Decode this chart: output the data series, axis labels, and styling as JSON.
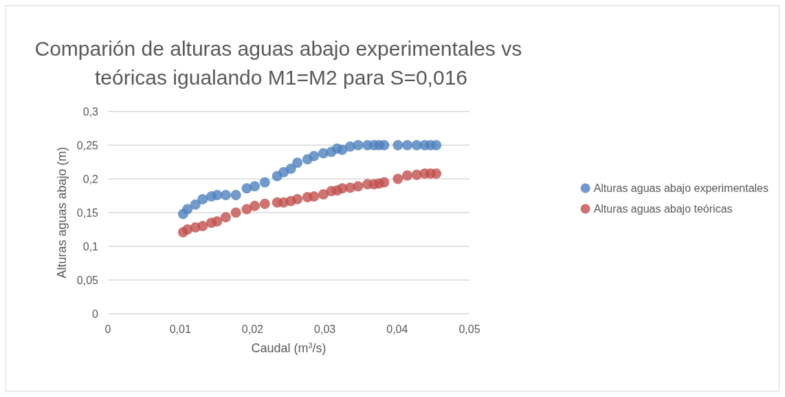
{
  "chart_data": {
    "type": "scatter",
    "title": "Comparión de alturas aguas abajo experimentales vs teóricas igualando M1=M2 para S=0,016",
    "xlabel": "Caudal (m$^{3}$/s)",
    "ylabel": "Alturas aguas abajo (m)",
    "x": [
      0.0104,
      0.011,
      0.0121,
      0.0131,
      0.0143,
      0.0151,
      0.0163,
      0.0177,
      0.0192,
      0.0203,
      0.0217,
      0.0234,
      0.0243,
      0.0253,
      0.0262,
      0.0276,
      0.0285,
      0.0298,
      0.0309,
      0.0317,
      0.0324,
      0.0335,
      0.0346,
      0.0359,
      0.0368,
      0.0375,
      0.0382,
      0.0401,
      0.0414,
      0.0427,
      0.0438,
      0.0446,
      0.0454
    ],
    "series": [
      {
        "name": "Alturas aguas abajo experimentales",
        "color": "#4f81bd",
        "values": [
          0.148,
          0.155,
          0.162,
          0.17,
          0.174,
          0.176,
          0.176,
          0.176,
          0.186,
          0.189,
          0.195,
          0.204,
          0.21,
          0.215,
          0.224,
          0.229,
          0.234,
          0.238,
          0.24,
          0.245,
          0.243,
          0.248,
          0.25,
          0.25,
          0.25,
          0.25,
          0.25,
          0.25,
          0.25,
          0.25,
          0.25,
          0.25,
          0.25
        ]
      },
      {
        "name": "Alturas aguas abajo teóricas",
        "color": "#c0504d",
        "values": [
          0.121,
          0.125,
          0.128,
          0.13,
          0.135,
          0.137,
          0.143,
          0.15,
          0.155,
          0.16,
          0.163,
          0.165,
          0.165,
          0.167,
          0.17,
          0.173,
          0.174,
          0.177,
          0.182,
          0.183,
          0.186,
          0.187,
          0.189,
          0.192,
          0.192,
          0.193,
          0.195,
          0.2,
          0.205,
          0.206,
          0.208,
          0.208,
          0.208
        ]
      }
    ],
    "xlim": [
      0,
      0.05
    ],
    "xticks": [
      {
        "value": 0,
        "label": "0"
      },
      {
        "value": 0.01,
        "label": "0,01"
      },
      {
        "value": 0.02,
        "label": "0,02"
      },
      {
        "value": 0.03,
        "label": "0,03"
      },
      {
        "value": 0.04,
        "label": "0,04"
      },
      {
        "value": 0.05,
        "label": "0,05"
      }
    ],
    "ylim": [
      0,
      0.3
    ],
    "yticks": [
      {
        "value": 0,
        "label": "0"
      },
      {
        "value": 0.05,
        "label": "0,05"
      },
      {
        "value": 0.1,
        "label": "0,1"
      },
      {
        "value": 0.15,
        "label": "0,15"
      },
      {
        "value": 0.2,
        "label": "0,2"
      },
      {
        "value": 0.25,
        "label": "0,25"
      },
      {
        "value": 0.3,
        "label": "0,3"
      }
    ],
    "grid": "y",
    "legend": "right",
    "marker": "circle"
  }
}
